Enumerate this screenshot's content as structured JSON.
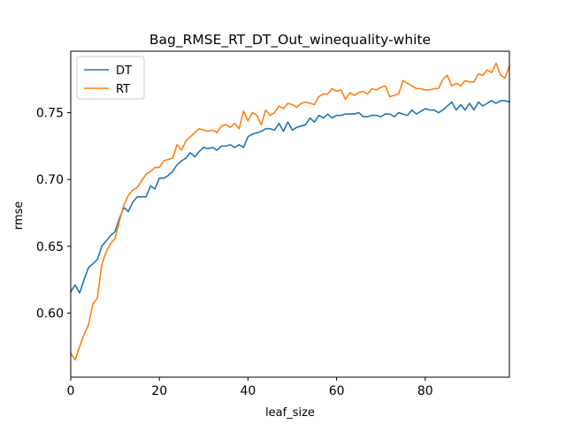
{
  "chart_data": {
    "type": "line",
    "title": "Bag_RMSE_RT_DT_Out_winequality-white",
    "xlabel": "leaf_size",
    "ylabel": "rmse",
    "xlim": [
      0,
      99
    ],
    "ylim": [
      0.552,
      0.796
    ],
    "xticks": [
      0,
      20,
      40,
      60,
      80
    ],
    "yticks": [
      0.6,
      0.65,
      0.7,
      0.75
    ],
    "ytick_labels": [
      "0.60",
      "0.65",
      "0.70",
      "0.75"
    ],
    "grid": false,
    "legend_position": "top-left",
    "series": [
      {
        "name": "DT",
        "color": "#1f77b4",
        "x": [
          0,
          1,
          2,
          3,
          4,
          5,
          6,
          7,
          8,
          9,
          10,
          11,
          12,
          13,
          14,
          15,
          16,
          17,
          18,
          19,
          20,
          21,
          22,
          23,
          24,
          25,
          26,
          27,
          28,
          29,
          30,
          31,
          32,
          33,
          34,
          35,
          36,
          37,
          38,
          39,
          40,
          41,
          42,
          43,
          44,
          45,
          46,
          47,
          48,
          49,
          50,
          51,
          52,
          53,
          54,
          55,
          56,
          57,
          58,
          59,
          60,
          61,
          62,
          63,
          64,
          65,
          66,
          67,
          68,
          69,
          70,
          71,
          72,
          73,
          74,
          75,
          76,
          77,
          78,
          79,
          80,
          81,
          82,
          83,
          84,
          85,
          86,
          87,
          88,
          89,
          90,
          91,
          92,
          93,
          94,
          95,
          96,
          97,
          98,
          99
        ],
        "y": [
          0.616,
          0.621,
          0.615,
          0.625,
          0.634,
          0.637,
          0.64,
          0.65,
          0.654,
          0.658,
          0.661,
          0.671,
          0.679,
          0.676,
          0.683,
          0.687,
          0.687,
          0.687,
          0.695,
          0.693,
          0.701,
          0.701,
          0.703,
          0.706,
          0.711,
          0.714,
          0.716,
          0.72,
          0.717,
          0.721,
          0.724,
          0.723,
          0.724,
          0.722,
          0.725,
          0.725,
          0.726,
          0.724,
          0.726,
          0.724,
          0.732,
          0.734,
          0.735,
          0.736,
          0.738,
          0.738,
          0.737,
          0.742,
          0.736,
          0.743,
          0.737,
          0.739,
          0.74,
          0.741,
          0.746,
          0.743,
          0.748,
          0.746,
          0.749,
          0.746,
          0.748,
          0.748,
          0.749,
          0.749,
          0.749,
          0.75,
          0.747,
          0.747,
          0.748,
          0.748,
          0.747,
          0.749,
          0.749,
          0.747,
          0.75,
          0.749,
          0.748,
          0.752,
          0.749,
          0.751,
          0.753,
          0.752,
          0.752,
          0.75,
          0.752,
          0.755,
          0.758,
          0.752,
          0.756,
          0.752,
          0.757,
          0.752,
          0.758,
          0.755,
          0.757,
          0.759,
          0.757,
          0.759,
          0.759,
          0.758
        ]
      },
      {
        "name": "RT",
        "color": "#ff7f0e",
        "x": [
          0,
          1,
          2,
          3,
          4,
          5,
          6,
          7,
          8,
          9,
          10,
          11,
          12,
          13,
          14,
          15,
          16,
          17,
          18,
          19,
          20,
          21,
          22,
          23,
          24,
          25,
          26,
          27,
          28,
          29,
          30,
          31,
          32,
          33,
          34,
          35,
          36,
          37,
          38,
          39,
          40,
          41,
          42,
          43,
          44,
          45,
          46,
          47,
          48,
          49,
          50,
          51,
          52,
          53,
          54,
          55,
          56,
          57,
          58,
          59,
          60,
          61,
          62,
          63,
          64,
          65,
          66,
          67,
          68,
          69,
          70,
          71,
          72,
          73,
          74,
          75,
          76,
          77,
          78,
          79,
          80,
          81,
          82,
          83,
          84,
          85,
          86,
          87,
          88,
          89,
          90,
          91,
          92,
          93,
          94,
          95,
          96,
          97,
          98,
          99
        ],
        "y": [
          0.57,
          0.565,
          0.575,
          0.584,
          0.591,
          0.607,
          0.611,
          0.636,
          0.646,
          0.652,
          0.656,
          0.669,
          0.681,
          0.688,
          0.692,
          0.694,
          0.699,
          0.704,
          0.706,
          0.709,
          0.709,
          0.714,
          0.715,
          0.716,
          0.726,
          0.722,
          0.729,
          0.732,
          0.735,
          0.738,
          0.737,
          0.736,
          0.737,
          0.735,
          0.74,
          0.741,
          0.739,
          0.742,
          0.738,
          0.751,
          0.744,
          0.75,
          0.748,
          0.741,
          0.752,
          0.748,
          0.75,
          0.755,
          0.753,
          0.757,
          0.756,
          0.754,
          0.757,
          0.758,
          0.757,
          0.756,
          0.762,
          0.764,
          0.764,
          0.768,
          0.766,
          0.767,
          0.76,
          0.765,
          0.763,
          0.765,
          0.766,
          0.764,
          0.768,
          0.767,
          0.769,
          0.77,
          0.762,
          0.763,
          0.764,
          0.774,
          0.772,
          0.77,
          0.768,
          0.768,
          0.767,
          0.767,
          0.768,
          0.768,
          0.775,
          0.778,
          0.77,
          0.772,
          0.77,
          0.774,
          0.773,
          0.773,
          0.779,
          0.778,
          0.782,
          0.78,
          0.787,
          0.778,
          0.776,
          0.785
        ]
      }
    ]
  }
}
